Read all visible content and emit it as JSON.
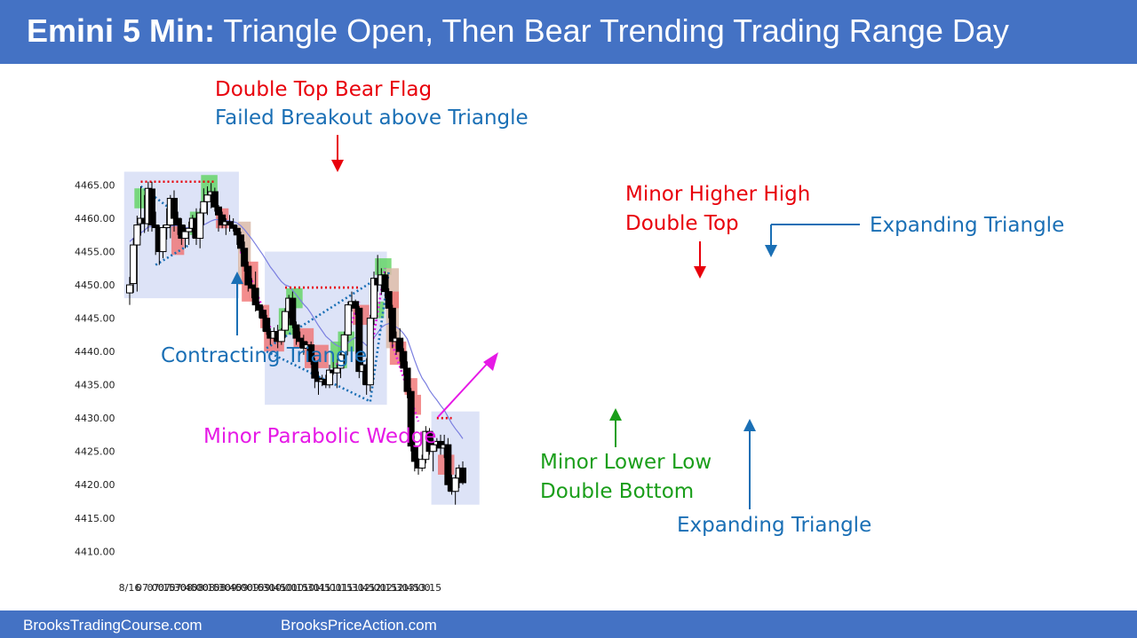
{
  "header": {
    "title_bold": "Emini 5 Min:",
    "title_rest": "Triangle Open, Then Bear Trending Trading Range Day"
  },
  "footer": {
    "left_link": "BrooksTradingCourse.com",
    "right_link": "BrooksPriceAction.com"
  },
  "colors": {
    "header_bg": "#4472c4",
    "bull_highlight": "#5fd35f",
    "bear_highlight": "#f07070",
    "doji_highlight": "#d9b8a8",
    "range_box": "#dde3f7",
    "ema_line": "#7b7fe0",
    "red_annotation": "#e8000b",
    "blue_annotation": "#1a6fb5",
    "green_annotation": "#1a9e1a",
    "magenta_annotation": "#e619e6"
  },
  "chart_data": {
    "type": "candlestick",
    "date_label": "8/16",
    "x_tick_labels": [
      "07:00",
      "07:15",
      "07:30",
      "07:45",
      "08:00",
      "08:15",
      "08:30",
      "08:45",
      "09:00",
      "09:15",
      "09:30",
      "09:45",
      "10:00",
      "10:15",
      "10:30",
      "10:45",
      "11:00",
      "11:15",
      "11:30",
      "11:45",
      "12:00",
      "12:15",
      "12:30",
      "12:45",
      "13:00",
      "13:15"
    ],
    "y_tick_labels": [
      "4465.00",
      "4460.00",
      "4455.00",
      "4450.00",
      "4445.00",
      "4440.00",
      "4435.00",
      "4430.00",
      "4425.00",
      "4420.00",
      "4415.00",
      "4410.00"
    ],
    "y_ticks": [
      4465,
      4460,
      4455,
      4450,
      4445,
      4440,
      4435,
      4430,
      4425,
      4420,
      4415,
      4410
    ],
    "ylim": [
      4408,
      4469
    ],
    "bars_per_hour": 12,
    "first_bar_time": "06:35",
    "candles": [
      {
        "o": 4448.8,
        "h": 4451.2,
        "l": 4447.0,
        "c": 4450.0
      },
      {
        "o": 4450.2,
        "h": 4457.0,
        "l": 4448.8,
        "c": 4456.0
      },
      {
        "o": 4456.0,
        "h": 4460.4,
        "l": 4449.0,
        "c": 4459.0
      },
      {
        "o": 4459.2,
        "h": 4464.8,
        "l": 4457.4,
        "c": 4460.0
      },
      {
        "o": 4460.0,
        "h": 4463.5,
        "l": 4457.8,
        "c": 4459.2
      },
      {
        "o": 4459.2,
        "h": 4465.5,
        "l": 4458.0,
        "c": 4464.5
      },
      {
        "o": 4464.4,
        "h": 4465.5,
        "l": 4458.0,
        "c": 4459.0
      },
      {
        "o": 4459.0,
        "h": 4461.0,
        "l": 4454.5,
        "c": 4458.6
      },
      {
        "o": 4458.5,
        "h": 4459.0,
        "l": 4453.0,
        "c": 4455.0
      },
      {
        "o": 4455.0,
        "h": 4459.0,
        "l": 4454.0,
        "c": 4458.6
      },
      {
        "o": 4458.6,
        "h": 4461.5,
        "l": 4456.8,
        "c": 4459.0
      },
      {
        "o": 4459.0,
        "h": 4463.5,
        "l": 4457.0,
        "c": 4463.0
      },
      {
        "o": 4463.0,
        "h": 4464.2,
        "l": 4458.0,
        "c": 4460.0
      },
      {
        "o": 4460.0,
        "h": 4461.0,
        "l": 4457.5,
        "c": 4459.0
      },
      {
        "o": 4459.0,
        "h": 4460.0,
        "l": 4456.0,
        "c": 4457.0
      },
      {
        "o": 4457.0,
        "h": 4459.0,
        "l": 4455.5,
        "c": 4458.0
      },
      {
        "o": 4458.0,
        "h": 4459.5,
        "l": 4456.0,
        "c": 4458.5
      },
      {
        "o": 4458.5,
        "h": 4460.5,
        "l": 4457.0,
        "c": 4460.0
      },
      {
        "o": 4460.0,
        "h": 4461.5,
        "l": 4456.0,
        "c": 4457.0
      },
      {
        "o": 4457.0,
        "h": 4461.5,
        "l": 4455.5,
        "c": 4460.8
      },
      {
        "o": 4460.8,
        "h": 4464.5,
        "l": 4459.0,
        "c": 4462.5
      },
      {
        "o": 4462.5,
        "h": 4464.8,
        "l": 4460.5,
        "c": 4463.5
      },
      {
        "o": 4463.5,
        "h": 4465.3,
        "l": 4461.5,
        "c": 4464.0
      },
      {
        "o": 4464.0,
        "h": 4464.6,
        "l": 4461.0,
        "c": 4461.7
      },
      {
        "o": 4461.7,
        "h": 4462.0,
        "l": 4458.0,
        "c": 4460.5
      },
      {
        "o": 4460.5,
        "h": 4461.0,
        "l": 4458.5,
        "c": 4459.0
      },
      {
        "o": 4459.0,
        "h": 4460.0,
        "l": 4457.5,
        "c": 4459.5
      },
      {
        "o": 4459.5,
        "h": 4460.5,
        "l": 4458.0,
        "c": 4459.0
      },
      {
        "o": 4459.0,
        "h": 4460.0,
        "l": 4458.0,
        "c": 4458.5
      },
      {
        "o": 4458.5,
        "h": 4459.0,
        "l": 4456.0,
        "c": 4457.5
      },
      {
        "o": 4457.5,
        "h": 4458.0,
        "l": 4455.0,
        "c": 4455.5
      },
      {
        "o": 4455.5,
        "h": 4456.5,
        "l": 4452.0,
        "c": 4452.8
      },
      {
        "o": 4452.8,
        "h": 4453.5,
        "l": 4449.0,
        "c": 4450.0
      },
      {
        "o": 4450.0,
        "h": 4451.0,
        "l": 4448.0,
        "c": 4449.5
      },
      {
        "o": 4449.5,
        "h": 4452.0,
        "l": 4446.0,
        "c": 4447.0
      },
      {
        "o": 4447.0,
        "h": 4447.5,
        "l": 4445.0,
        "c": 4446.2
      },
      {
        "o": 4446.2,
        "h": 4446.8,
        "l": 4443.0,
        "c": 4445.0
      },
      {
        "o": 4445.0,
        "h": 4445.5,
        "l": 4442.5,
        "c": 4443.0
      },
      {
        "o": 4443.0,
        "h": 4443.5,
        "l": 4441.0,
        "c": 4442.0
      },
      {
        "o": 4442.0,
        "h": 4443.6,
        "l": 4441.5,
        "c": 4443.0
      },
      {
        "o": 4443.0,
        "h": 4444.0,
        "l": 4440.5,
        "c": 4441.5
      },
      {
        "o": 4441.5,
        "h": 4443.5,
        "l": 4441.0,
        "c": 4443.2
      },
      {
        "o": 4443.2,
        "h": 4446.5,
        "l": 4442.0,
        "c": 4446.0
      },
      {
        "o": 4446.0,
        "h": 4448.5,
        "l": 4445.0,
        "c": 4448.0
      },
      {
        "o": 4448.0,
        "h": 4449.0,
        "l": 4443.5,
        "c": 4444.0
      },
      {
        "o": 4444.0,
        "h": 4444.5,
        "l": 4441.0,
        "c": 4442.0
      },
      {
        "o": 4442.0,
        "h": 4443.0,
        "l": 4440.5,
        "c": 4441.5
      },
      {
        "o": 4441.5,
        "h": 4442.5,
        "l": 4439.5,
        "c": 4440.5
      },
      {
        "o": 4440.5,
        "h": 4441.5,
        "l": 4439.0,
        "c": 4441.0
      },
      {
        "o": 4441.0,
        "h": 4441.5,
        "l": 4438.0,
        "c": 4438.5
      },
      {
        "o": 4438.5,
        "h": 4439.0,
        "l": 4434.5,
        "c": 4436.0
      },
      {
        "o": 4436.0,
        "h": 4437.0,
        "l": 4433.5,
        "c": 4435.5
      },
      {
        "o": 4435.5,
        "h": 4436.5,
        "l": 4434.8,
        "c": 4435.8
      },
      {
        "o": 4435.8,
        "h": 4436.5,
        "l": 4434.5,
        "c": 4435.0
      },
      {
        "o": 4435.0,
        "h": 4438.0,
        "l": 4434.5,
        "c": 4437.2
      },
      {
        "o": 4437.2,
        "h": 4438.5,
        "l": 4436.5,
        "c": 4436.8
      },
      {
        "o": 4436.8,
        "h": 4438.0,
        "l": 4434.5,
        "c": 4437.5
      },
      {
        "o": 4437.5,
        "h": 4440.0,
        "l": 4436.0,
        "c": 4439.5
      },
      {
        "o": 4439.5,
        "h": 4443.0,
        "l": 4438.0,
        "c": 4442.5
      },
      {
        "o": 4442.5,
        "h": 4447.5,
        "l": 4441.5,
        "c": 4447.0
      },
      {
        "o": 4447.0,
        "h": 4449.0,
        "l": 4446.0,
        "c": 4447.5
      },
      {
        "o": 4447.5,
        "h": 4447.8,
        "l": 4445.5,
        "c": 4446.5
      },
      {
        "o": 4446.5,
        "h": 4446.8,
        "l": 4436.0,
        "c": 4437.0
      },
      {
        "o": 4437.0,
        "h": 4438.5,
        "l": 4435.0,
        "c": 4438.0
      },
      {
        "o": 4438.0,
        "h": 4439.0,
        "l": 4433.5,
        "c": 4435.0
      },
      {
        "o": 4435.0,
        "h": 4445.5,
        "l": 4434.0,
        "c": 4445.0
      },
      {
        "o": 4445.0,
        "h": 4452.0,
        "l": 4444.0,
        "c": 4451.0
      },
      {
        "o": 4451.0,
        "h": 4454.5,
        "l": 4449.0,
        "c": 4450.0
      },
      {
        "o": 4450.0,
        "h": 4452.5,
        "l": 4448.5,
        "c": 4451.5
      },
      {
        "o": 4451.5,
        "h": 4452.0,
        "l": 4448.0,
        "c": 4449.0
      },
      {
        "o": 4449.0,
        "h": 4449.5,
        "l": 4445.0,
        "c": 4446.5
      },
      {
        "o": 4446.5,
        "h": 4447.0,
        "l": 4440.5,
        "c": 4441.5
      },
      {
        "o": 4441.5,
        "h": 4443.0,
        "l": 4439.5,
        "c": 4442.0
      },
      {
        "o": 4442.0,
        "h": 4443.5,
        "l": 4438.5,
        "c": 4440.0
      },
      {
        "o": 4440.0,
        "h": 4440.5,
        "l": 4436.5,
        "c": 4437.5
      },
      {
        "o": 4437.5,
        "h": 4438.5,
        "l": 4433.0,
        "c": 4434.0
      },
      {
        "o": 4434.0,
        "h": 4434.5,
        "l": 4425.0,
        "c": 4425.8
      },
      {
        "o": 4425.8,
        "h": 4426.5,
        "l": 4422.0,
        "c": 4423.5
      },
      {
        "o": 4423.5,
        "h": 4424.0,
        "l": 4421.5,
        "c": 4422.5
      },
      {
        "o": 4422.5,
        "h": 4424.5,
        "l": 4422.0,
        "c": 4423.8
      },
      {
        "o": 4423.8,
        "h": 4428.8,
        "l": 4423.2,
        "c": 4428.0
      },
      {
        "o": 4428.0,
        "h": 4428.5,
        "l": 4424.5,
        "c": 4425.0
      },
      {
        "o": 4425.0,
        "h": 4427.0,
        "l": 4422.0,
        "c": 4426.0
      },
      {
        "o": 4426.0,
        "h": 4427.0,
        "l": 4425.0,
        "c": 4426.5
      },
      {
        "o": 4426.5,
        "h": 4427.5,
        "l": 4424.5,
        "c": 4425.5
      },
      {
        "o": 4425.5,
        "h": 4427.5,
        "l": 4424.0,
        "c": 4426.0
      },
      {
        "o": 4426.0,
        "h": 4427.0,
        "l": 4419.0,
        "c": 4420.0
      },
      {
        "o": 4420.0,
        "h": 4421.5,
        "l": 4418.5,
        "c": 4419.0
      },
      {
        "o": 4419.0,
        "h": 4421.5,
        "l": 4417.0,
        "c": 4421.0
      },
      {
        "o": 4421.0,
        "h": 4423.0,
        "l": 4419.5,
        "c": 4422.5
      },
      {
        "o": 4422.5,
        "h": 4423.5,
        "l": 4420.0,
        "c": 4420.3
      }
    ],
    "ema": [
      4456.5,
      4457.0,
      4457.4,
      4457.8,
      4458.2,
      4458.7,
      4458.8,
      4458.8,
      4458.6,
      4458.5,
      4458.5,
      4458.8,
      4458.9,
      4458.9,
      4458.7,
      4458.6,
      4458.6,
      4458.7,
      4458.6,
      4458.7,
      4459.0,
      4459.3,
      4459.6,
      4459.8,
      4459.8,
      4459.7,
      4459.7,
      4459.6,
      4459.5,
      4459.3,
      4458.9,
      4458.3,
      4457.6,
      4456.9,
      4456.1,
      4455.3,
      4454.5,
      4453.6,
      4452.7,
      4452.0,
      4451.2,
      4450.5,
      4450.0,
      4449.8,
      4449.2,
      4448.5,
      4447.8,
      4447.1,
      4446.5,
      4445.7,
      4444.8,
      4443.9,
      4443.1,
      4442.3,
      4441.8,
      4441.3,
      4440.9,
      4440.7,
      4440.8,
      4441.3,
      4441.8,
      4442.1,
      4441.7,
      4441.4,
      4440.9,
      4441.3,
      4442.1,
      4442.8,
      4443.6,
      4444.0,
      4444.2,
      4443.9,
      4443.7,
      4443.3,
      4442.7,
      4441.9,
      4440.3,
      4438.7,
      4437.2,
      4436.0,
      4435.2,
      4434.2,
      4433.4,
      4432.7,
      4431.9,
      4431.2,
      4430.2,
      4429.2,
      4428.4,
      4427.7,
      4426.9
    ],
    "highlights": [
      {
        "type": "bull",
        "from": 2,
        "to": 5,
        "top": 4464.5,
        "bottom": 4461.5
      },
      {
        "type": "bear",
        "from": 12,
        "to": 14,
        "top": 4459.0,
        "bottom": 4454.5
      },
      {
        "type": "bull",
        "from": 17,
        "to": 19,
        "top": 4461.0,
        "bottom": 4457.5
      },
      {
        "type": "bull",
        "from": 20,
        "to": 23,
        "top": 4466.5,
        "bottom": 4462.5
      },
      {
        "type": "bear",
        "from": 24,
        "to": 26,
        "top": 4461.5,
        "bottom": 4458.5
      },
      {
        "type": "doji",
        "from": 30,
        "to": 32,
        "top": 4459.5,
        "bottom": 4450.0
      },
      {
        "type": "bear",
        "from": 31,
        "to": 34,
        "top": 4453.5,
        "bottom": 4447.5
      },
      {
        "type": "bear",
        "from": 36,
        "to": 37,
        "top": 4447.0,
        "bottom": 4443.5
      },
      {
        "type": "bear",
        "from": 37,
        "to": 41,
        "top": 4443.0,
        "bottom": 4440.0
      },
      {
        "type": "bull",
        "from": 41,
        "to": 44,
        "top": 4446.5,
        "bottom": 4442.5
      },
      {
        "type": "bull",
        "from": 43,
        "to": 46,
        "top": 4449.5,
        "bottom": 4446.5
      },
      {
        "type": "bear",
        "from": 45,
        "to": 49,
        "top": 4443.5,
        "bottom": 4440.5
      },
      {
        "type": "bear",
        "from": 48,
        "to": 53,
        "top": 4441.0,
        "bottom": 4437.5
      },
      {
        "type": "bull",
        "from": 55,
        "to": 58,
        "top": 4441.5,
        "bottom": 4437.5
      },
      {
        "type": "bull",
        "from": 57,
        "to": 60,
        "top": 4443.0,
        "bottom": 4440.0
      },
      {
        "type": "bear",
        "from": 61,
        "to": 64,
        "top": 4447.0,
        "bottom": 4444.0
      },
      {
        "type": "bull",
        "from": 66,
        "to": 68,
        "top": 4447.5,
        "bottom": 4445.0
      },
      {
        "type": "bull",
        "from": 67,
        "to": 70,
        "top": 4454.0,
        "bottom": 4451.5
      },
      {
        "type": "doji",
        "from": 70,
        "to": 72,
        "top": 4452.5,
        "bottom": 4440.5
      },
      {
        "type": "bear",
        "from": 70,
        "to": 72,
        "top": 4449.0,
        "bottom": 4446.5
      },
      {
        "type": "bear",
        "from": 71,
        "to": 74,
        "top": 4441.5,
        "bottom": 4438.0
      },
      {
        "type": "bear",
        "from": 75,
        "to": 77,
        "top": 4436.0,
        "bottom": 4433.5
      },
      {
        "type": "bear",
        "from": 76,
        "to": 78,
        "top": 4433.5,
        "bottom": 4430.5
      },
      {
        "type": "bear",
        "from": 84,
        "to": 87,
        "top": 4424.5,
        "bottom": 4421.5
      }
    ],
    "range_boxes": [
      {
        "from": -1.5,
        "to": 29.5,
        "top": 4467.0,
        "bottom": 4448.0
      },
      {
        "from": 36.5,
        "to": 69.5,
        "top": 4455.0,
        "bottom": 4432.0
      },
      {
        "from": 81.5,
        "to": 94.5,
        "top": 4431.0,
        "bottom": 4417.0
      }
    ],
    "lines": [
      {
        "kind": "red_dotted",
        "a": [
          3,
          4465.5
        ],
        "b": [
          23,
          4465.5
        ]
      },
      {
        "kind": "blue_dotted",
        "a": [
          3,
          4464.8
        ],
        "b": [
          12,
          4461.0
        ]
      },
      {
        "kind": "blue_dotted",
        "a": [
          7,
          4453.0
        ],
        "b": [
          16,
          4456.0
        ]
      },
      {
        "kind": "red_dotted",
        "a": [
          42,
          4449.6
        ],
        "b": [
          62,
          4449.6
        ]
      },
      {
        "kind": "blue_dotted",
        "a": [
          37,
          4440.5
        ],
        "b": [
          67,
          4451.0
        ]
      },
      {
        "kind": "blue_dotted",
        "a": [
          37,
          4440.0
        ],
        "b": [
          65,
          4432.5
        ]
      },
      {
        "kind": "blue_dotted",
        "a": [
          65,
          4432.5
        ],
        "b": [
          70,
          4452.0
        ]
      },
      {
        "kind": "red_dotted",
        "a": [
          83,
          4430.0
        ],
        "b": [
          87,
          4430.0
        ]
      },
      {
        "kind": "magenta_dotted",
        "a": [
          30,
          4455.0
        ],
        "b": [
          38,
          4443.5
        ]
      },
      {
        "kind": "magenta_dotted",
        "a": [
          56,
          4438.0
        ],
        "b": [
          62,
          4447.5
        ]
      },
      {
        "kind": "magenta_dotted",
        "a": [
          64,
          4436.0
        ],
        "b": [
          69,
          4452.5
        ]
      },
      {
        "kind": "magenta_dotted",
        "a": [
          71,
          4441.0
        ],
        "b": [
          78,
          4429.5
        ]
      }
    ],
    "annotations": [
      {
        "id": "double-top-bear-flag",
        "text": "Double Top Bear Flag",
        "color": "red"
      },
      {
        "id": "failed-breakout-triangle",
        "text": "Failed Breakout above Triangle",
        "color": "blue"
      },
      {
        "id": "minor-higher-high",
        "text": "Minor Higher High",
        "color": "red"
      },
      {
        "id": "double-top",
        "text": "Double Top",
        "color": "red"
      },
      {
        "id": "expanding-triangle-top",
        "text": "Expanding Triangle",
        "color": "blue"
      },
      {
        "id": "contracting-triangle",
        "text": "Contracting Triangle",
        "color": "blue"
      },
      {
        "id": "minor-parabolic-wedge",
        "text": "Minor Parabolic Wedge",
        "color": "magenta"
      },
      {
        "id": "minor-lower-low",
        "text": "Minor Lower Low",
        "color": "green"
      },
      {
        "id": "double-bottom",
        "text": "Double Bottom",
        "color": "green"
      },
      {
        "id": "expanding-triangle-bottom",
        "text": "Expanding Triangle",
        "color": "blue"
      }
    ]
  }
}
